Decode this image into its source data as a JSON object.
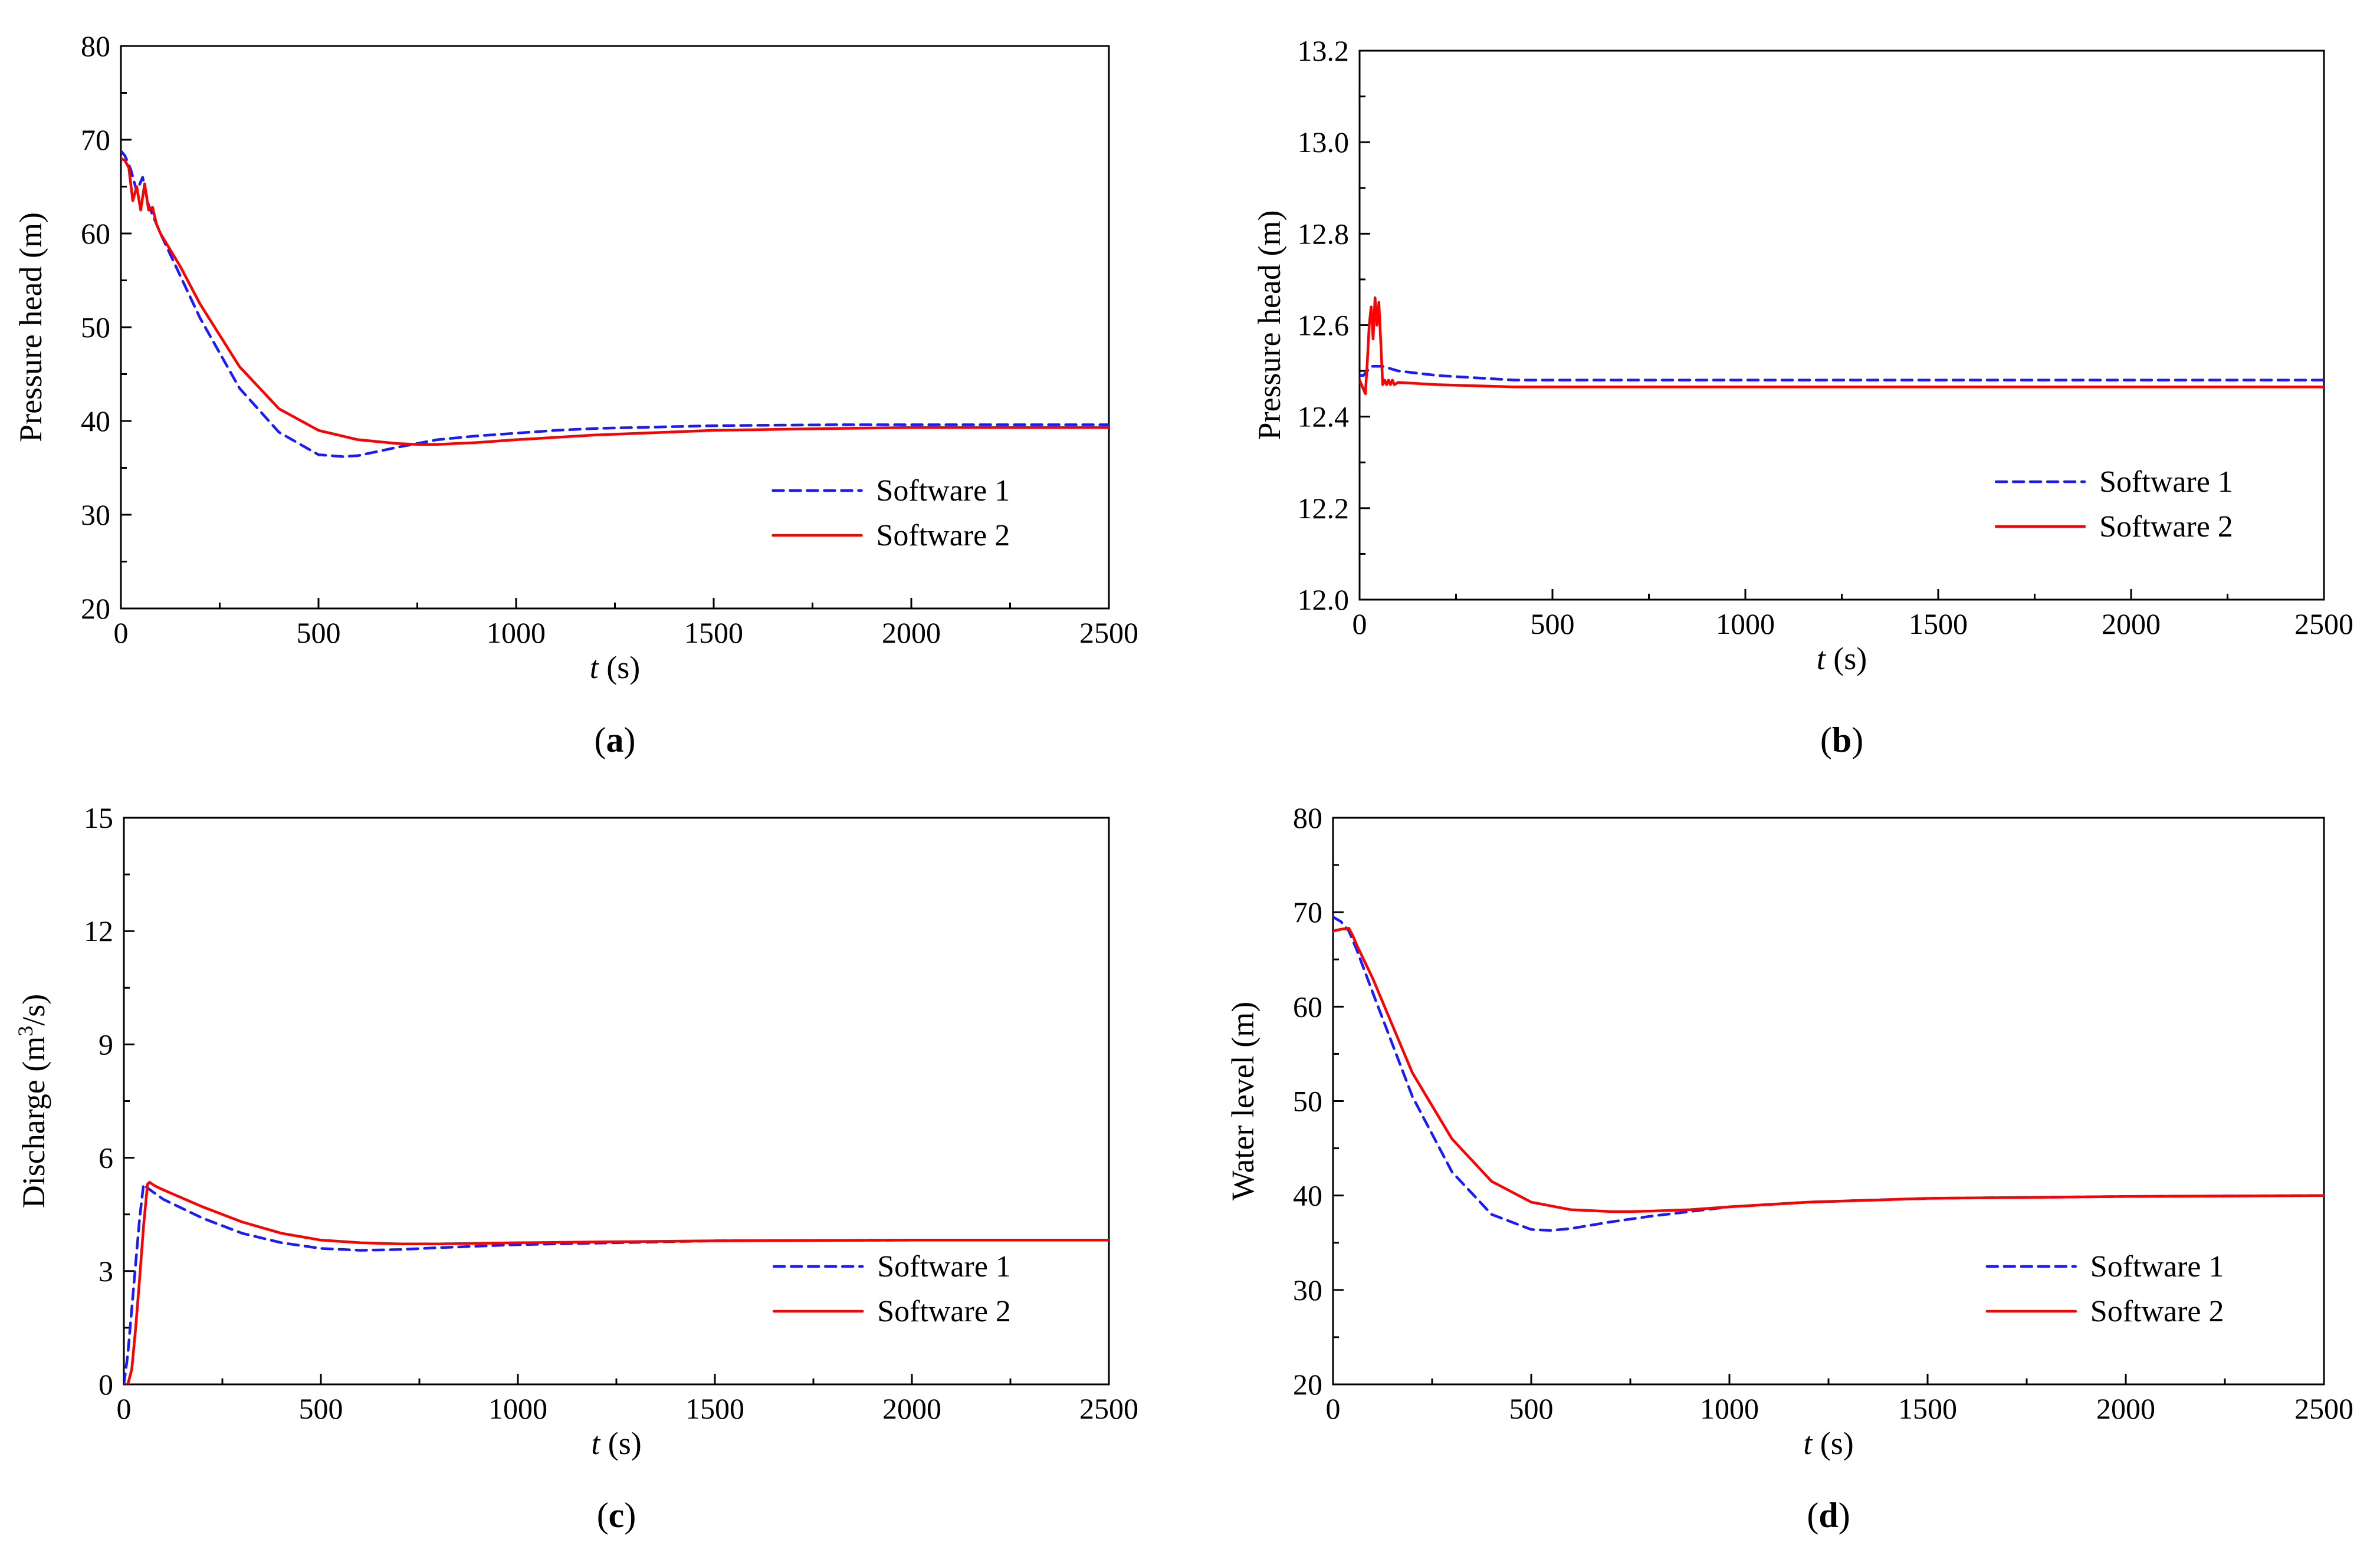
{
  "chart_data": [
    {
      "id": "a",
      "type": "line",
      "panel_label": "a",
      "xlabel_italic": "t",
      "xlabel_unit": " (s)",
      "ylabel": "Pressure head (m)",
      "xlim": [
        0,
        2500
      ],
      "ylim": [
        20,
        80
      ],
      "xticks": [
        0,
        500,
        1000,
        1500,
        2000,
        2500
      ],
      "yticks": [
        20,
        30,
        40,
        50,
        60,
        70,
        80
      ],
      "ytick_decimals": 0,
      "legend_position": "lower-right",
      "series": [
        {
          "name": "Software 1",
          "color": "#1a1aff",
          "dash": "dashed",
          "x": [
            0,
            10,
            25,
            40,
            55,
            70,
            100,
            150,
            200,
            300,
            400,
            500,
            560,
            600,
            700,
            800,
            900,
            1000,
            1100,
            1200,
            1500,
            1800,
            2000,
            2200,
            2500
          ],
          "y": [
            68.8,
            68.3,
            66.8,
            64.5,
            66.0,
            63.0,
            60.0,
            55.5,
            51.0,
            43.5,
            38.8,
            36.4,
            36.2,
            36.3,
            37.2,
            38.0,
            38.4,
            38.7,
            39.0,
            39.2,
            39.5,
            39.6,
            39.6,
            39.6,
            39.6
          ]
        },
        {
          "name": "Software 2",
          "color": "#ff0000",
          "dash": "solid",
          "x": [
            0,
            10,
            20,
            30,
            40,
            50,
            60,
            70,
            80,
            90,
            100,
            150,
            200,
            300,
            400,
            500,
            600,
            700,
            750,
            800,
            900,
            1000,
            1200,
            1500,
            1800,
            2000,
            2200,
            2500
          ],
          "y": [
            68.0,
            67.8,
            67.0,
            63.5,
            65.0,
            62.5,
            65.3,
            62.5,
            62.8,
            61.0,
            60.0,
            56.5,
            52.5,
            45.8,
            41.3,
            39.0,
            38.0,
            37.6,
            37.5,
            37.5,
            37.7,
            38.0,
            38.5,
            39.0,
            39.2,
            39.3,
            39.3,
            39.3
          ]
        }
      ]
    },
    {
      "id": "b",
      "type": "line",
      "panel_label": "b",
      "xlabel_italic": "t",
      "xlabel_unit": " (s)",
      "ylabel": "Pressure head (m)",
      "xlim": [
        0,
        2500
      ],
      "ylim": [
        12.0,
        13.2
      ],
      "xticks": [
        0,
        500,
        1000,
        1500,
        2000,
        2500
      ],
      "yticks": [
        12.0,
        12.2,
        12.4,
        12.6,
        12.8,
        13.0,
        13.2
      ],
      "ytick_decimals": 1,
      "legend_position": "lower-right",
      "series": [
        {
          "name": "Software 1",
          "color": "#1a1aff",
          "dash": "dashed",
          "x": [
            0,
            10,
            20,
            30,
            40,
            50,
            60,
            80,
            100,
            200,
            400,
            700,
            1000,
            1500,
            2000,
            2500
          ],
          "y": [
            12.49,
            12.49,
            12.5,
            12.51,
            12.51,
            12.51,
            12.51,
            12.505,
            12.5,
            12.49,
            12.48,
            12.48,
            12.48,
            12.48,
            12.48,
            12.48
          ]
        },
        {
          "name": "Software 2",
          "color": "#ff0000",
          "dash": "solid",
          "x": [
            0,
            10,
            15,
            20,
            25,
            30,
            35,
            40,
            45,
            50,
            55,
            60,
            65,
            70,
            75,
            80,
            85,
            90,
            100,
            200,
            400,
            700,
            1000,
            1500,
            2000,
            2500
          ],
          "y": [
            12.48,
            12.46,
            12.45,
            12.52,
            12.6,
            12.64,
            12.57,
            12.66,
            12.6,
            12.65,
            12.56,
            12.47,
            12.48,
            12.47,
            12.48,
            12.47,
            12.48,
            12.47,
            12.475,
            12.47,
            12.465,
            12.465,
            12.465,
            12.465,
            12.465,
            12.465
          ]
        }
      ]
    },
    {
      "id": "c",
      "type": "line",
      "panel_label": "c",
      "xlabel_italic": "t",
      "xlabel_unit": " (s)",
      "ylabel_main": "Discharge (m",
      "ylabel_sup": "3",
      "ylabel_tail": "/s)",
      "xlim": [
        0,
        2500
      ],
      "ylim": [
        0,
        15
      ],
      "xticks": [
        0,
        500,
        1000,
        1500,
        2000,
        2500
      ],
      "yticks": [
        0,
        3,
        6,
        9,
        12,
        15
      ],
      "ytick_decimals": 0,
      "legend_position": "lower-right",
      "series": [
        {
          "name": "Software 1",
          "color": "#1a1aff",
          "dash": "dashed",
          "x": [
            0,
            10,
            20,
            30,
            40,
            50,
            60,
            80,
            100,
            200,
            300,
            400,
            500,
            600,
            700,
            800,
            1000,
            1500,
            2000,
            2500
          ],
          "y": [
            0,
            0.8,
            2.0,
            3.2,
            4.4,
            5.3,
            5.2,
            5.05,
            4.9,
            4.4,
            4.0,
            3.75,
            3.6,
            3.55,
            3.57,
            3.62,
            3.7,
            3.8,
            3.82,
            3.82
          ]
        },
        {
          "name": "Software 2",
          "color": "#ff0000",
          "dash": "solid",
          "x": [
            0,
            10,
            20,
            30,
            40,
            50,
            60,
            65,
            80,
            100,
            200,
            300,
            400,
            500,
            600,
            700,
            800,
            1000,
            1500,
            2000,
            2500
          ],
          "y": [
            0,
            0,
            0.4,
            1.5,
            2.8,
            4.2,
            5.3,
            5.35,
            5.25,
            5.15,
            4.7,
            4.3,
            4.0,
            3.82,
            3.75,
            3.72,
            3.72,
            3.75,
            3.8,
            3.82,
            3.82
          ]
        }
      ]
    },
    {
      "id": "d",
      "type": "line",
      "panel_label": "d",
      "xlabel_italic": "t",
      "xlabel_unit": " (s)",
      "ylabel": "Water level (m)",
      "xlim": [
        0,
        2500
      ],
      "ylim": [
        20,
        80
      ],
      "xticks": [
        0,
        500,
        1000,
        1500,
        2000,
        2500
      ],
      "yticks": [
        20,
        30,
        40,
        50,
        60,
        70,
        80
      ],
      "ytick_decimals": 0,
      "legend_position": "lower-right",
      "series": [
        {
          "name": "Software 1",
          "color": "#1a1aff",
          "dash": "dashed",
          "x": [
            0,
            20,
            40,
            60,
            100,
            150,
            200,
            300,
            400,
            500,
            550,
            600,
            700,
            800,
            900,
            1000,
            1200,
            1500,
            2000,
            2500
          ],
          "y": [
            69.5,
            69.0,
            68.0,
            66.0,
            61.5,
            56.0,
            50.5,
            42.5,
            38.0,
            36.4,
            36.3,
            36.5,
            37.2,
            37.8,
            38.3,
            38.8,
            39.3,
            39.7,
            39.9,
            40.0
          ]
        },
        {
          "name": "Software 2",
          "color": "#ff0000",
          "dash": "solid",
          "x": [
            0,
            20,
            40,
            50,
            60,
            100,
            150,
            200,
            300,
            400,
            500,
            600,
            700,
            750,
            800,
            900,
            1000,
            1200,
            1500,
            2000,
            2500
          ],
          "y": [
            68.0,
            68.2,
            68.3,
            67.5,
            66.5,
            63.0,
            58.0,
            53.0,
            46.0,
            41.5,
            39.3,
            38.5,
            38.3,
            38.3,
            38.35,
            38.5,
            38.8,
            39.3,
            39.7,
            39.9,
            40.0
          ]
        }
      ]
    }
  ]
}
